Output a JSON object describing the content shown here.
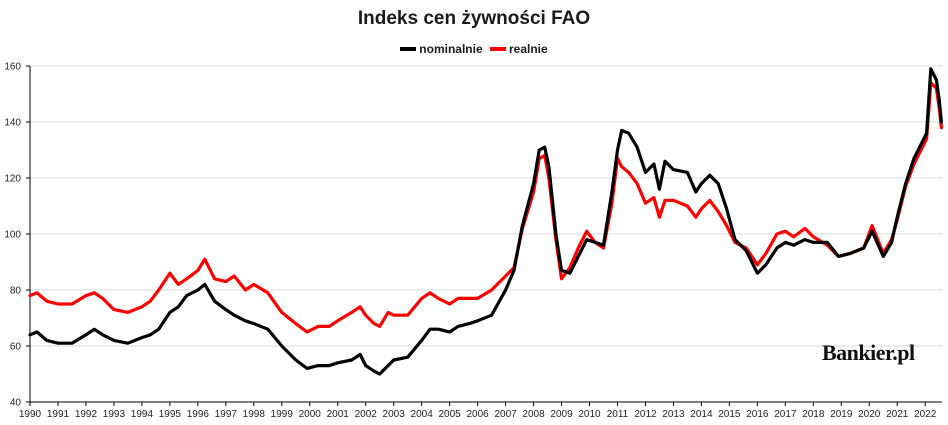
{
  "chart_data": {
    "type": "line",
    "title": "Indeks cen żywności FAO",
    "xlabel": "",
    "ylabel": "",
    "xlim": [
      1990,
      2022.6
    ],
    "ylim": [
      40,
      160
    ],
    "y_ticks": [
      40,
      60,
      80,
      100,
      120,
      140,
      160
    ],
    "x_ticks": [
      1990,
      1991,
      1992,
      1993,
      1994,
      1995,
      1996,
      1997,
      1998,
      1999,
      2000,
      2001,
      2002,
      2003,
      2004,
      2005,
      2006,
      2007,
      2008,
      2009,
      2010,
      2011,
      2012,
      2013,
      2014,
      2015,
      2016,
      2017,
      2018,
      2019,
      2020,
      2021,
      2022
    ],
    "grid": "horizontal",
    "legend_position": "top-center",
    "series": [
      {
        "name": "nominalnie",
        "color": "#000000",
        "points": [
          [
            1990.0,
            64
          ],
          [
            1990.25,
            65
          ],
          [
            1990.6,
            62
          ],
          [
            1991.0,
            61
          ],
          [
            1991.5,
            61
          ],
          [
            1992.0,
            64
          ],
          [
            1992.3,
            66
          ],
          [
            1992.6,
            64
          ],
          [
            1993.0,
            62
          ],
          [
            1993.5,
            61
          ],
          [
            1994.0,
            63
          ],
          [
            1994.3,
            64
          ],
          [
            1994.6,
            66
          ],
          [
            1995.0,
            72
          ],
          [
            1995.3,
            74
          ],
          [
            1995.6,
            78
          ],
          [
            1996.0,
            80
          ],
          [
            1996.25,
            82
          ],
          [
            1996.6,
            76
          ],
          [
            1997.0,
            73
          ],
          [
            1997.3,
            71
          ],
          [
            1997.7,
            69
          ],
          [
            1998.0,
            68
          ],
          [
            1998.5,
            66
          ],
          [
            1999.0,
            60
          ],
          [
            1999.5,
            55
          ],
          [
            1999.9,
            52
          ],
          [
            2000.3,
            53
          ],
          [
            2000.7,
            53
          ],
          [
            2001.0,
            54
          ],
          [
            2001.5,
            55
          ],
          [
            2001.8,
            57
          ],
          [
            2002.0,
            53
          ],
          [
            2002.3,
            51
          ],
          [
            2002.5,
            50
          ],
          [
            2002.8,
            53
          ],
          [
            2003.0,
            55
          ],
          [
            2003.5,
            56
          ],
          [
            2004.0,
            62
          ],
          [
            2004.3,
            66
          ],
          [
            2004.6,
            66
          ],
          [
            2005.0,
            65
          ],
          [
            2005.3,
            67
          ],
          [
            2005.7,
            68
          ],
          [
            2006.0,
            69
          ],
          [
            2006.5,
            71
          ],
          [
            2007.0,
            80
          ],
          [
            2007.3,
            87
          ],
          [
            2007.6,
            103
          ],
          [
            2008.0,
            118
          ],
          [
            2008.2,
            130
          ],
          [
            2008.4,
            131
          ],
          [
            2008.55,
            124
          ],
          [
            2008.8,
            100
          ],
          [
            2009.0,
            87
          ],
          [
            2009.3,
            86
          ],
          [
            2009.6,
            92
          ],
          [
            2009.9,
            98
          ],
          [
            2010.2,
            97
          ],
          [
            2010.5,
            96
          ],
          [
            2010.8,
            115
          ],
          [
            2011.0,
            130
          ],
          [
            2011.15,
            137
          ],
          [
            2011.4,
            136
          ],
          [
            2011.7,
            131
          ],
          [
            2012.0,
            122
          ],
          [
            2012.3,
            125
          ],
          [
            2012.5,
            116
          ],
          [
            2012.7,
            126
          ],
          [
            2013.0,
            123
          ],
          [
            2013.5,
            122
          ],
          [
            2013.8,
            115
          ],
          [
            2014.0,
            118
          ],
          [
            2014.3,
            121
          ],
          [
            2014.6,
            118
          ],
          [
            2014.9,
            109
          ],
          [
            2015.2,
            98
          ],
          [
            2015.6,
            94
          ],
          [
            2016.0,
            86
          ],
          [
            2016.3,
            89
          ],
          [
            2016.7,
            95
          ],
          [
            2017.0,
            97
          ],
          [
            2017.3,
            96
          ],
          [
            2017.7,
            98
          ],
          [
            2018.0,
            97
          ],
          [
            2018.5,
            97
          ],
          [
            2018.9,
            92
          ],
          [
            2019.3,
            93
          ],
          [
            2019.8,
            95
          ],
          [
            2020.1,
            101
          ],
          [
            2020.5,
            92
          ],
          [
            2020.8,
            97
          ],
          [
            2021.0,
            106
          ],
          [
            2021.3,
            118
          ],
          [
            2021.6,
            127
          ],
          [
            2021.9,
            133
          ],
          [
            2022.05,
            136
          ],
          [
            2022.2,
            159
          ],
          [
            2022.4,
            155
          ],
          [
            2022.5,
            148
          ],
          [
            2022.58,
            140
          ]
        ]
      },
      {
        "name": "realnie",
        "color": "#ff0000",
        "points": [
          [
            1990.0,
            78
          ],
          [
            1990.25,
            79
          ],
          [
            1990.6,
            76
          ],
          [
            1991.0,
            75
          ],
          [
            1991.5,
            75
          ],
          [
            1992.0,
            78
          ],
          [
            1992.3,
            79
          ],
          [
            1992.6,
            77
          ],
          [
            1993.0,
            73
          ],
          [
            1993.5,
            72
          ],
          [
            1994.0,
            74
          ],
          [
            1994.3,
            76
          ],
          [
            1994.6,
            80
          ],
          [
            1995.0,
            86
          ],
          [
            1995.3,
            82
          ],
          [
            1995.6,
            84
          ],
          [
            1996.0,
            87
          ],
          [
            1996.25,
            91
          ],
          [
            1996.6,
            84
          ],
          [
            1997.0,
            83
          ],
          [
            1997.3,
            85
          ],
          [
            1997.7,
            80
          ],
          [
            1998.0,
            82
          ],
          [
            1998.5,
            79
          ],
          [
            1999.0,
            72
          ],
          [
            1999.5,
            68
          ],
          [
            1999.9,
            65
          ],
          [
            2000.3,
            67
          ],
          [
            2000.7,
            67
          ],
          [
            2001.0,
            69
          ],
          [
            2001.5,
            72
          ],
          [
            2001.8,
            74
          ],
          [
            2002.0,
            71
          ],
          [
            2002.3,
            68
          ],
          [
            2002.5,
            67
          ],
          [
            2002.8,
            72
          ],
          [
            2003.0,
            71
          ],
          [
            2003.5,
            71
          ],
          [
            2004.0,
            77
          ],
          [
            2004.3,
            79
          ],
          [
            2004.6,
            77
          ],
          [
            2005.0,
            75
          ],
          [
            2005.3,
            77
          ],
          [
            2005.7,
            77
          ],
          [
            2006.0,
            77
          ],
          [
            2006.5,
            80
          ],
          [
            2007.0,
            85
          ],
          [
            2007.3,
            88
          ],
          [
            2007.6,
            102
          ],
          [
            2008.0,
            115
          ],
          [
            2008.2,
            127
          ],
          [
            2008.4,
            128
          ],
          [
            2008.55,
            120
          ],
          [
            2008.8,
            98
          ],
          [
            2009.0,
            84
          ],
          [
            2009.3,
            88
          ],
          [
            2009.6,
            95
          ],
          [
            2009.9,
            101
          ],
          [
            2010.2,
            97
          ],
          [
            2010.5,
            95
          ],
          [
            2010.8,
            111
          ],
          [
            2011.0,
            127
          ],
          [
            2011.15,
            124
          ],
          [
            2011.4,
            122
          ],
          [
            2011.7,
            118
          ],
          [
            2012.0,
            111
          ],
          [
            2012.3,
            113
          ],
          [
            2012.5,
            106
          ],
          [
            2012.7,
            112
          ],
          [
            2013.0,
            112
          ],
          [
            2013.5,
            110
          ],
          [
            2013.8,
            106
          ],
          [
            2014.0,
            109
          ],
          [
            2014.3,
            112
          ],
          [
            2014.6,
            108
          ],
          [
            2014.9,
            103
          ],
          [
            2015.2,
            97
          ],
          [
            2015.6,
            95
          ],
          [
            2016.0,
            89
          ],
          [
            2016.3,
            93
          ],
          [
            2016.7,
            100
          ],
          [
            2017.0,
            101
          ],
          [
            2017.3,
            99
          ],
          [
            2017.7,
            102
          ],
          [
            2018.0,
            99
          ],
          [
            2018.5,
            96
          ],
          [
            2018.9,
            92
          ],
          [
            2019.3,
            93
          ],
          [
            2019.8,
            95
          ],
          [
            2020.1,
            103
          ],
          [
            2020.5,
            93
          ],
          [
            2020.8,
            98
          ],
          [
            2021.0,
            105
          ],
          [
            2021.3,
            117
          ],
          [
            2021.6,
            125
          ],
          [
            2021.9,
            131
          ],
          [
            2022.05,
            134
          ],
          [
            2022.2,
            154
          ],
          [
            2022.4,
            152
          ],
          [
            2022.5,
            145
          ],
          [
            2022.58,
            138
          ]
        ]
      }
    ]
  },
  "watermark_text": "Bankier.pl"
}
